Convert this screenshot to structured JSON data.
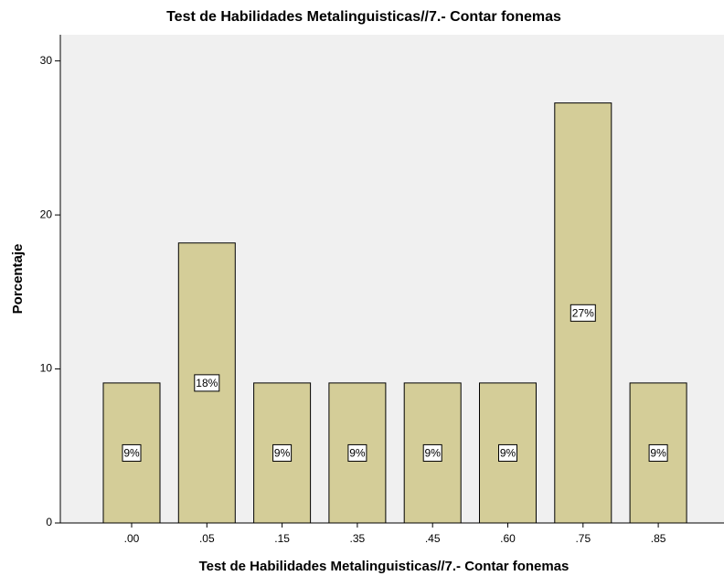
{
  "chart_data": {
    "type": "bar",
    "title": "Test de Habilidades Metalinguisticas//7.- Contar fonemas",
    "x_label": "Test de Habilidades Metalinguisticas//7.- Contar fonemas",
    "y_label": "Porcentaje",
    "categories": [
      ".00",
      ".05",
      ".15",
      ".35",
      ".45",
      ".60",
      ".75",
      ".85"
    ],
    "values": [
      9.09,
      18.18,
      9.09,
      9.09,
      9.09,
      9.09,
      27.27,
      9.09
    ],
    "value_labels": [
      "9%",
      "18%",
      "9%",
      "9%",
      "9%",
      "9%",
      "27%",
      "9%"
    ],
    "color": "#d4cd98",
    "ylim": [
      0,
      31.7
    ],
    "yticks": [
      0,
      10,
      20,
      30
    ]
  }
}
